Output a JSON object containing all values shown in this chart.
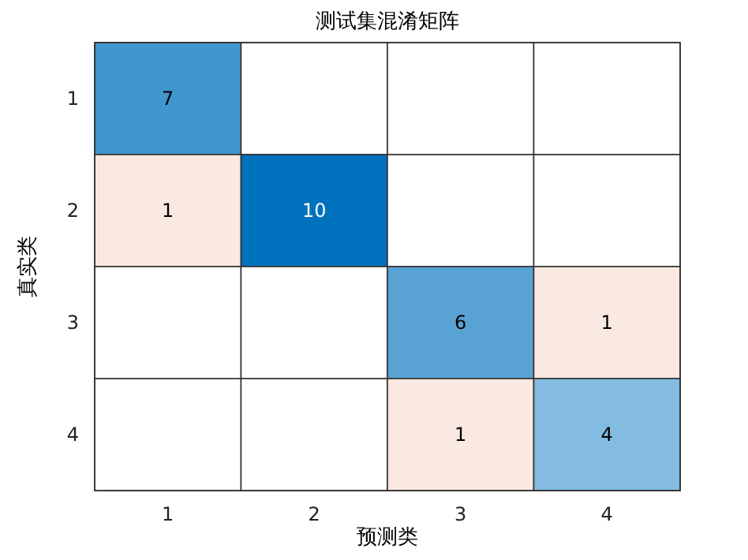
{
  "chart_data": {
    "type": "heatmap",
    "title": "测试集混淆矩阵",
    "xlabel": "预测类",
    "ylabel": "真实类",
    "categories": [
      "1",
      "2",
      "3",
      "4"
    ],
    "y_categories": [
      "1",
      "2",
      "3",
      "4"
    ],
    "cells": [
      [
        7,
        null,
        null,
        null
      ],
      [
        1,
        10,
        null,
        null
      ],
      [
        null,
        null,
        6,
        1
      ],
      [
        null,
        null,
        1,
        4
      ]
    ],
    "data_labels": true
  }
}
